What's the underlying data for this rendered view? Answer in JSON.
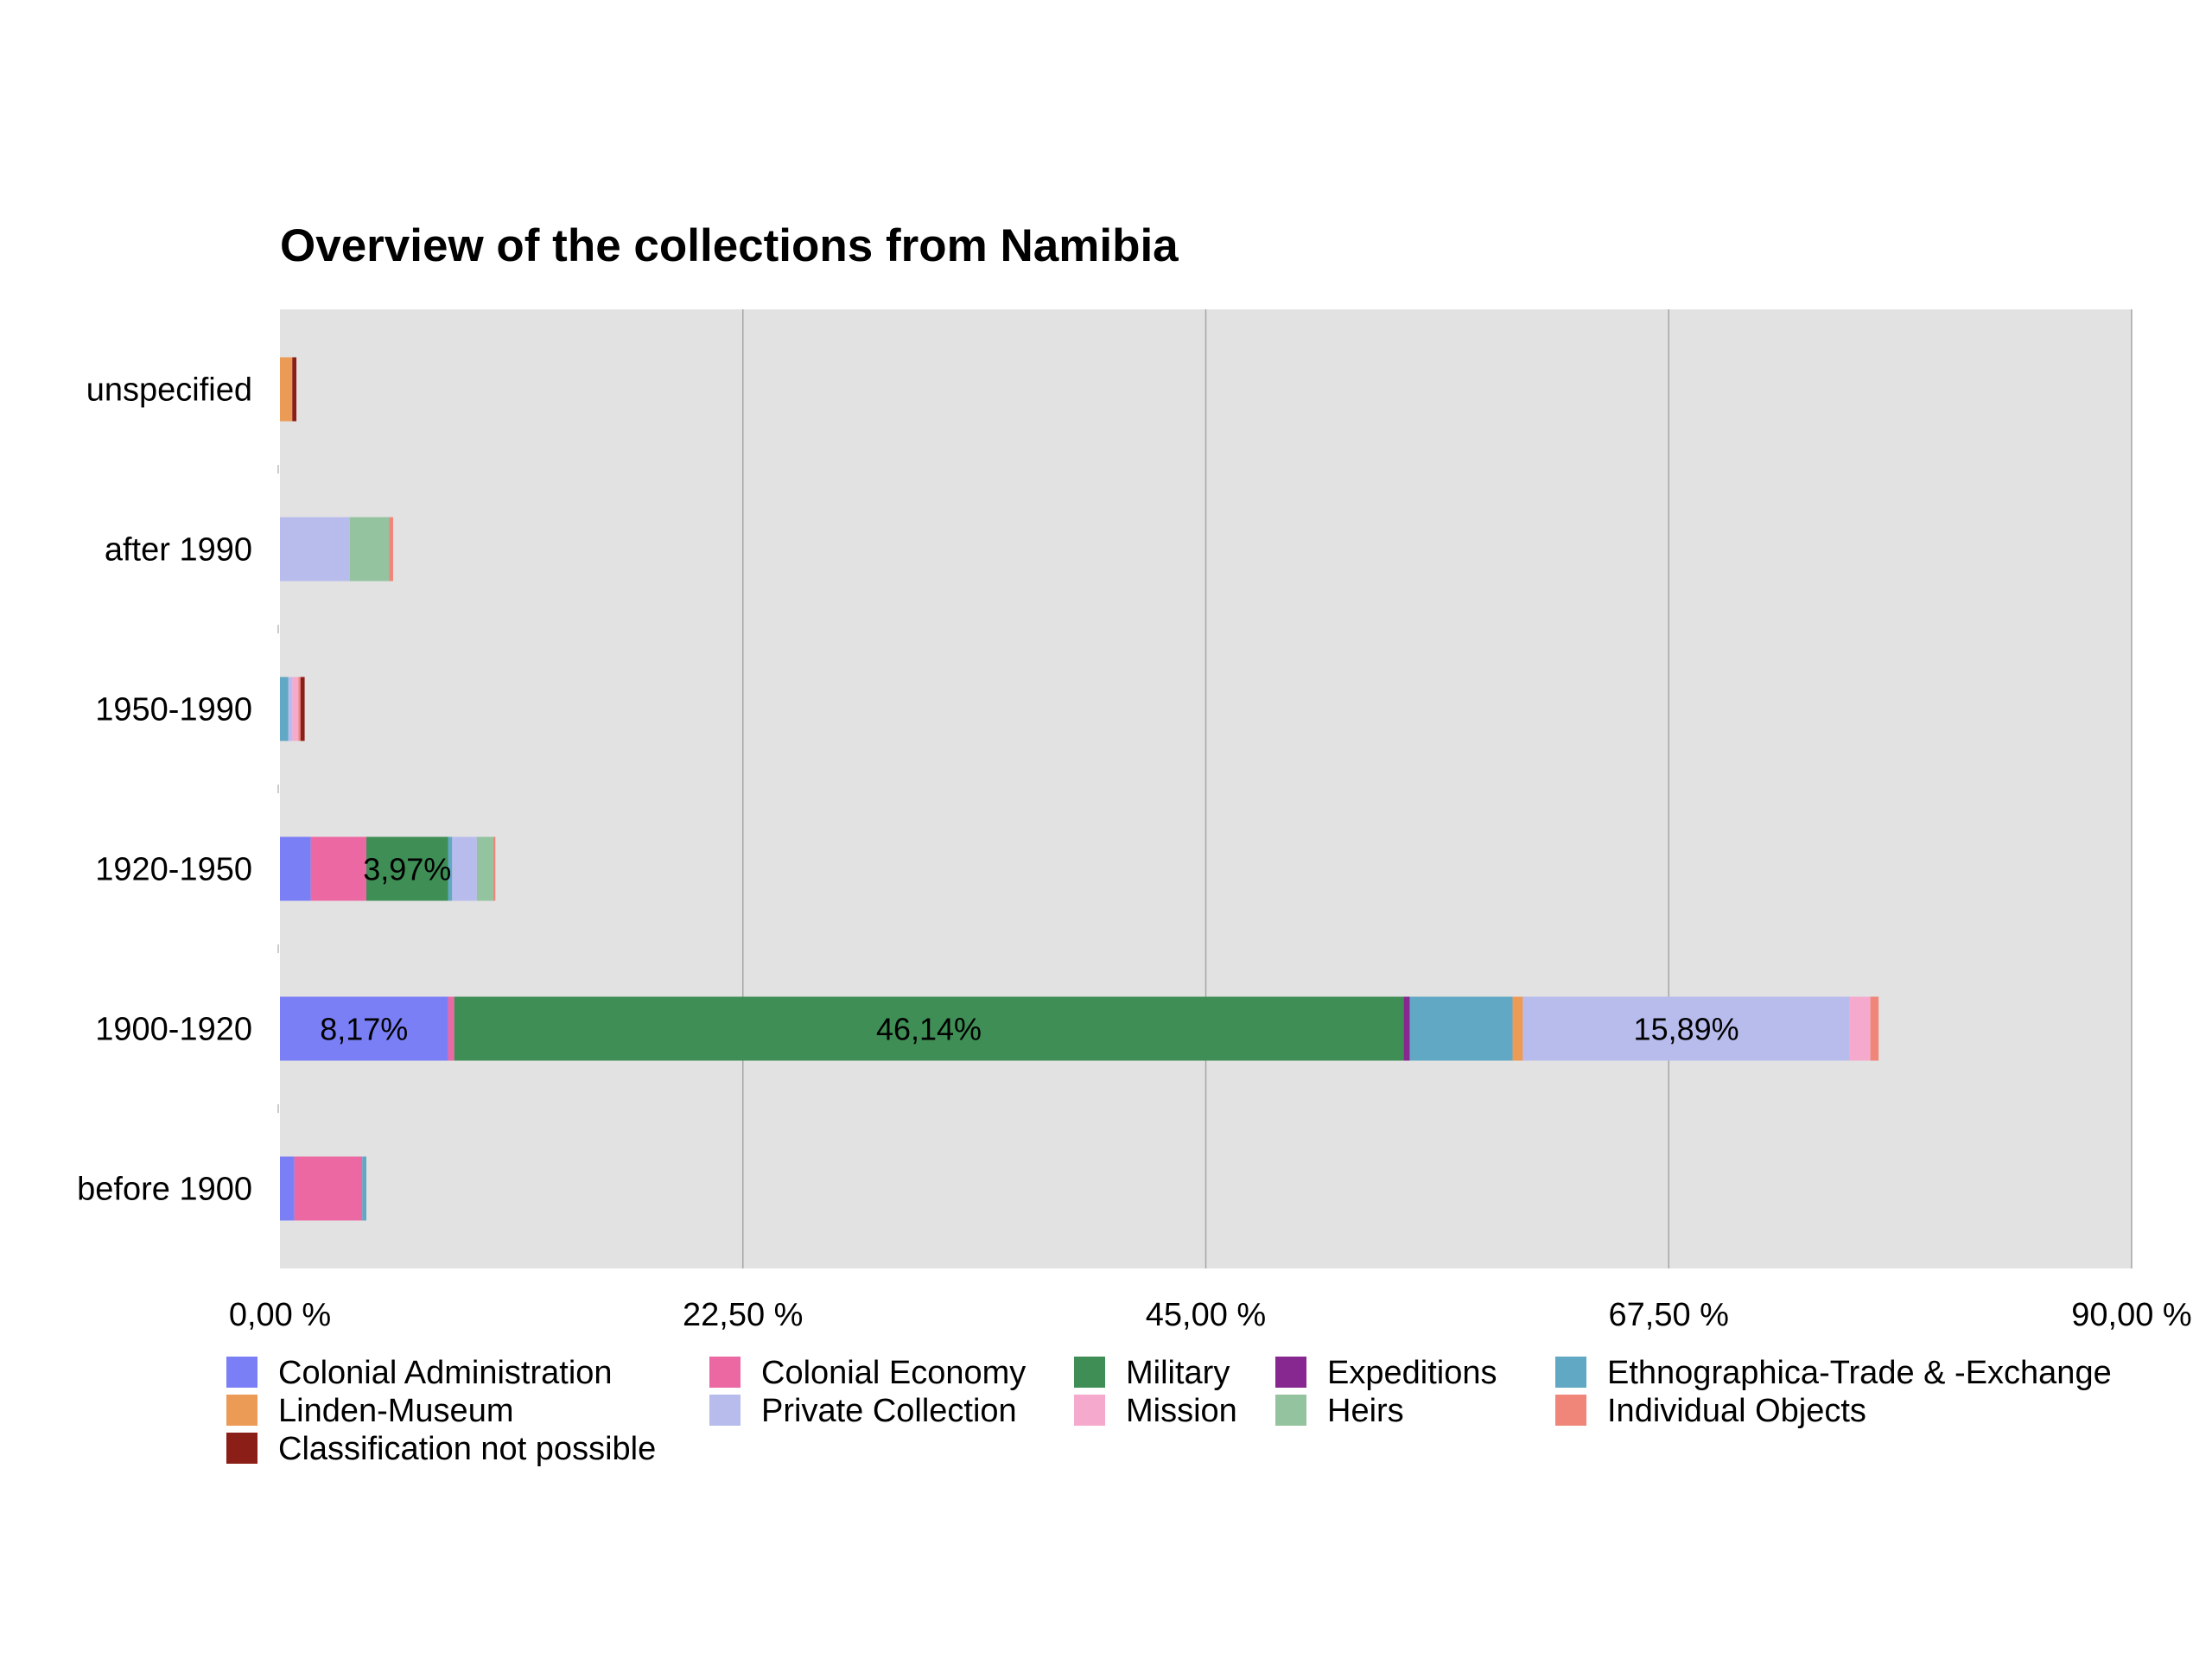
{
  "chart_data": {
    "type": "bar",
    "orientation": "horizontal",
    "stacked": true,
    "title": "Overview of the collections from Namibia",
    "xlabel": "",
    "ylabel": "",
    "xlim": [
      0,
      90
    ],
    "x_ticks": [
      "0,00 %",
      "22,50 %",
      "45,00 %",
      "67,50 %",
      "90,00 %"
    ],
    "grid": true,
    "legend_position": "bottom",
    "categories": [
      "unspecified",
      "after 1990",
      "1950-1990",
      "1920-1950",
      "1900-1920",
      "before 1900"
    ],
    "series": [
      {
        "name": "Colonial Administration",
        "color": "#7b7ff5",
        "values": [
          0,
          0,
          0,
          1.5,
          8.17,
          0.7
        ]
      },
      {
        "name": "Colonial Economy",
        "color": "#ec68a3",
        "values": [
          0,
          0,
          0,
          2.7,
          0.3,
          3.3
        ]
      },
      {
        "name": "Military",
        "color": "#3f8e56",
        "values": [
          0,
          0,
          0,
          3.97,
          46.14,
          0
        ]
      },
      {
        "name": "Expeditions",
        "color": "#86288f",
        "values": [
          0,
          0,
          0,
          0,
          0.3,
          0
        ]
      },
      {
        "name": "Ethnographica-Trade & -Exchange",
        "color": "#60a8c3",
        "values": [
          0,
          0,
          0.4,
          0.2,
          5.0,
          0.2
        ]
      },
      {
        "name": "Linden-Museum",
        "color": "#ec9b57",
        "values": [
          0.6,
          0,
          0,
          0,
          0.5,
          0
        ]
      },
      {
        "name": "Private Collection",
        "color": "#b8bcec",
        "values": [
          0,
          3.4,
          0.2,
          1.2,
          15.89,
          0
        ]
      },
      {
        "name": "Mission",
        "color": "#f5aacd",
        "values": [
          0,
          0,
          0.3,
          0,
          1.0,
          0
        ]
      },
      {
        "name": "Heirs",
        "color": "#93c39f",
        "values": [
          0,
          1.9,
          0,
          0.8,
          0,
          0
        ]
      },
      {
        "name": "Individual Objects",
        "color": "#ef8679",
        "values": [
          0,
          0.2,
          0.1,
          0.1,
          0.4,
          0
        ]
      },
      {
        "name": "Classification not possible",
        "color": "#8b1e16",
        "values": [
          0.2,
          0,
          0.2,
          0,
          0,
          0
        ]
      }
    ],
    "data_labels": [
      {
        "category": "1920-1950",
        "series": "Military",
        "text": "3,97%"
      },
      {
        "category": "1900-1920",
        "series": "Colonial Administration",
        "text": "8,17%"
      },
      {
        "category": "1900-1920",
        "series": "Military",
        "text": "46,14%"
      },
      {
        "category": "1900-1920",
        "series": "Private Collection",
        "text": "15,89%"
      }
    ],
    "colors": {
      "plot_background": "#e2e2e2",
      "grid": "#a6a6a6"
    }
  }
}
